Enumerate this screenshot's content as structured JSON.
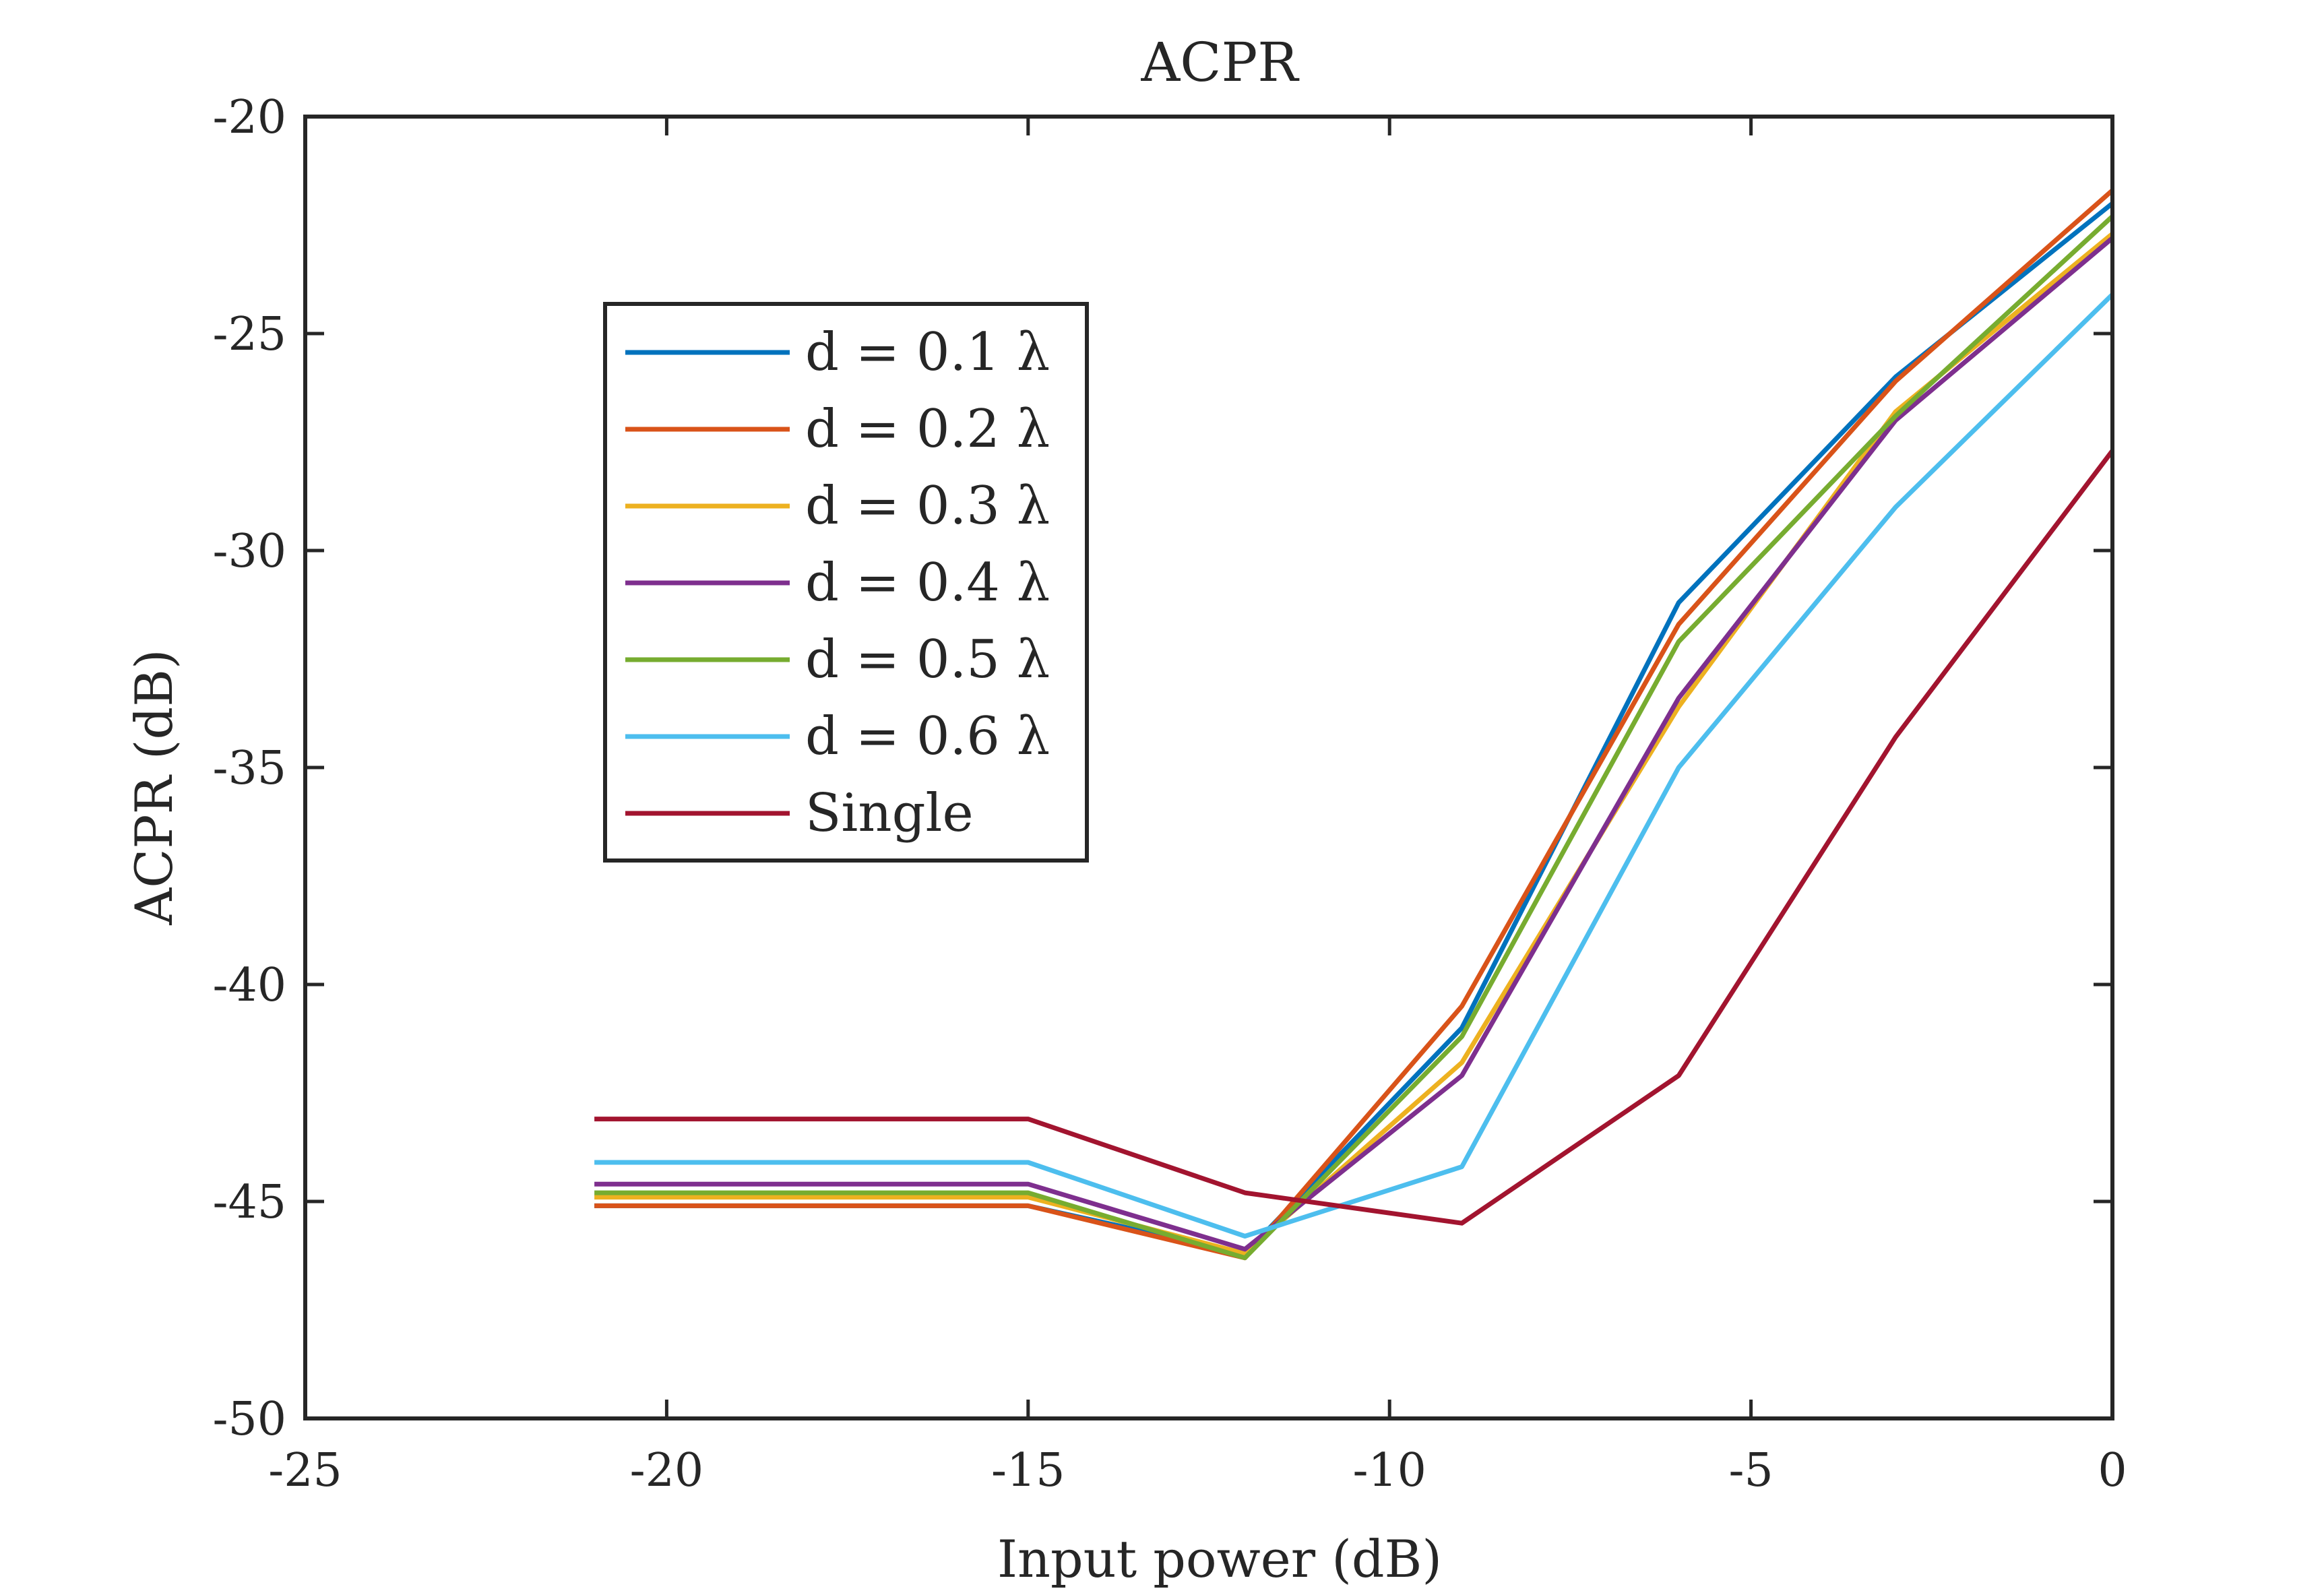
{
  "chart_data": {
    "type": "line",
    "title": "ACPR",
    "xlabel": "Input power (dB)",
    "ylabel": "ACPR (dB)",
    "xlim": [
      -25,
      0
    ],
    "ylim": [
      -50,
      -20
    ],
    "x_ticks": [
      -25,
      -20,
      -15,
      -10,
      -5,
      0
    ],
    "y_ticks": [
      -50,
      -45,
      -40,
      -35,
      -30,
      -25,
      -20
    ],
    "x_tick_labels": [
      "-25",
      "-20",
      "-15",
      "-10",
      "-5",
      "0"
    ],
    "y_tick_labels": [
      "-50",
      "-45",
      "-40",
      "-35",
      "-30",
      "-25",
      "-20"
    ],
    "grid": false,
    "legend_position": "upper-left",
    "x": [
      -21,
      -15,
      -12,
      -9,
      -6,
      -3,
      0
    ],
    "series": [
      {
        "name": "d = 0.1 λ",
        "color": "#0072BD",
        "values": [
          -45.1,
          -45.1,
          -46.2,
          -41.0,
          -31.2,
          -26.0,
          -22.0
        ]
      },
      {
        "name": "d = 0.2 λ",
        "color": "#D95319",
        "values": [
          -45.1,
          -45.1,
          -46.3,
          -40.5,
          -31.7,
          -26.1,
          -21.7
        ]
      },
      {
        "name": "d = 0.3 λ",
        "color": "#EDB120",
        "values": [
          -44.9,
          -44.9,
          -46.2,
          -41.8,
          -33.6,
          -26.8,
          -22.7
        ]
      },
      {
        "name": "d = 0.4 λ",
        "color": "#7E2F8E",
        "values": [
          -44.6,
          -44.6,
          -46.1,
          -42.1,
          -33.4,
          -27.0,
          -22.8
        ]
      },
      {
        "name": "d = 0.5 λ",
        "color": "#77AC30",
        "values": [
          -44.8,
          -44.8,
          -46.3,
          -41.2,
          -32.1,
          -26.9,
          -22.3
        ]
      },
      {
        "name": "d = 0.6 λ",
        "color": "#4DBEEE",
        "values": [
          -44.1,
          -44.1,
          -45.8,
          -44.2,
          -35.0,
          -29.0,
          -24.1
        ]
      },
      {
        "name": "Single",
        "color": "#A2142F",
        "values": [
          -43.1,
          -43.1,
          -44.8,
          -45.5,
          -42.1,
          -34.3,
          -27.7
        ]
      }
    ]
  }
}
